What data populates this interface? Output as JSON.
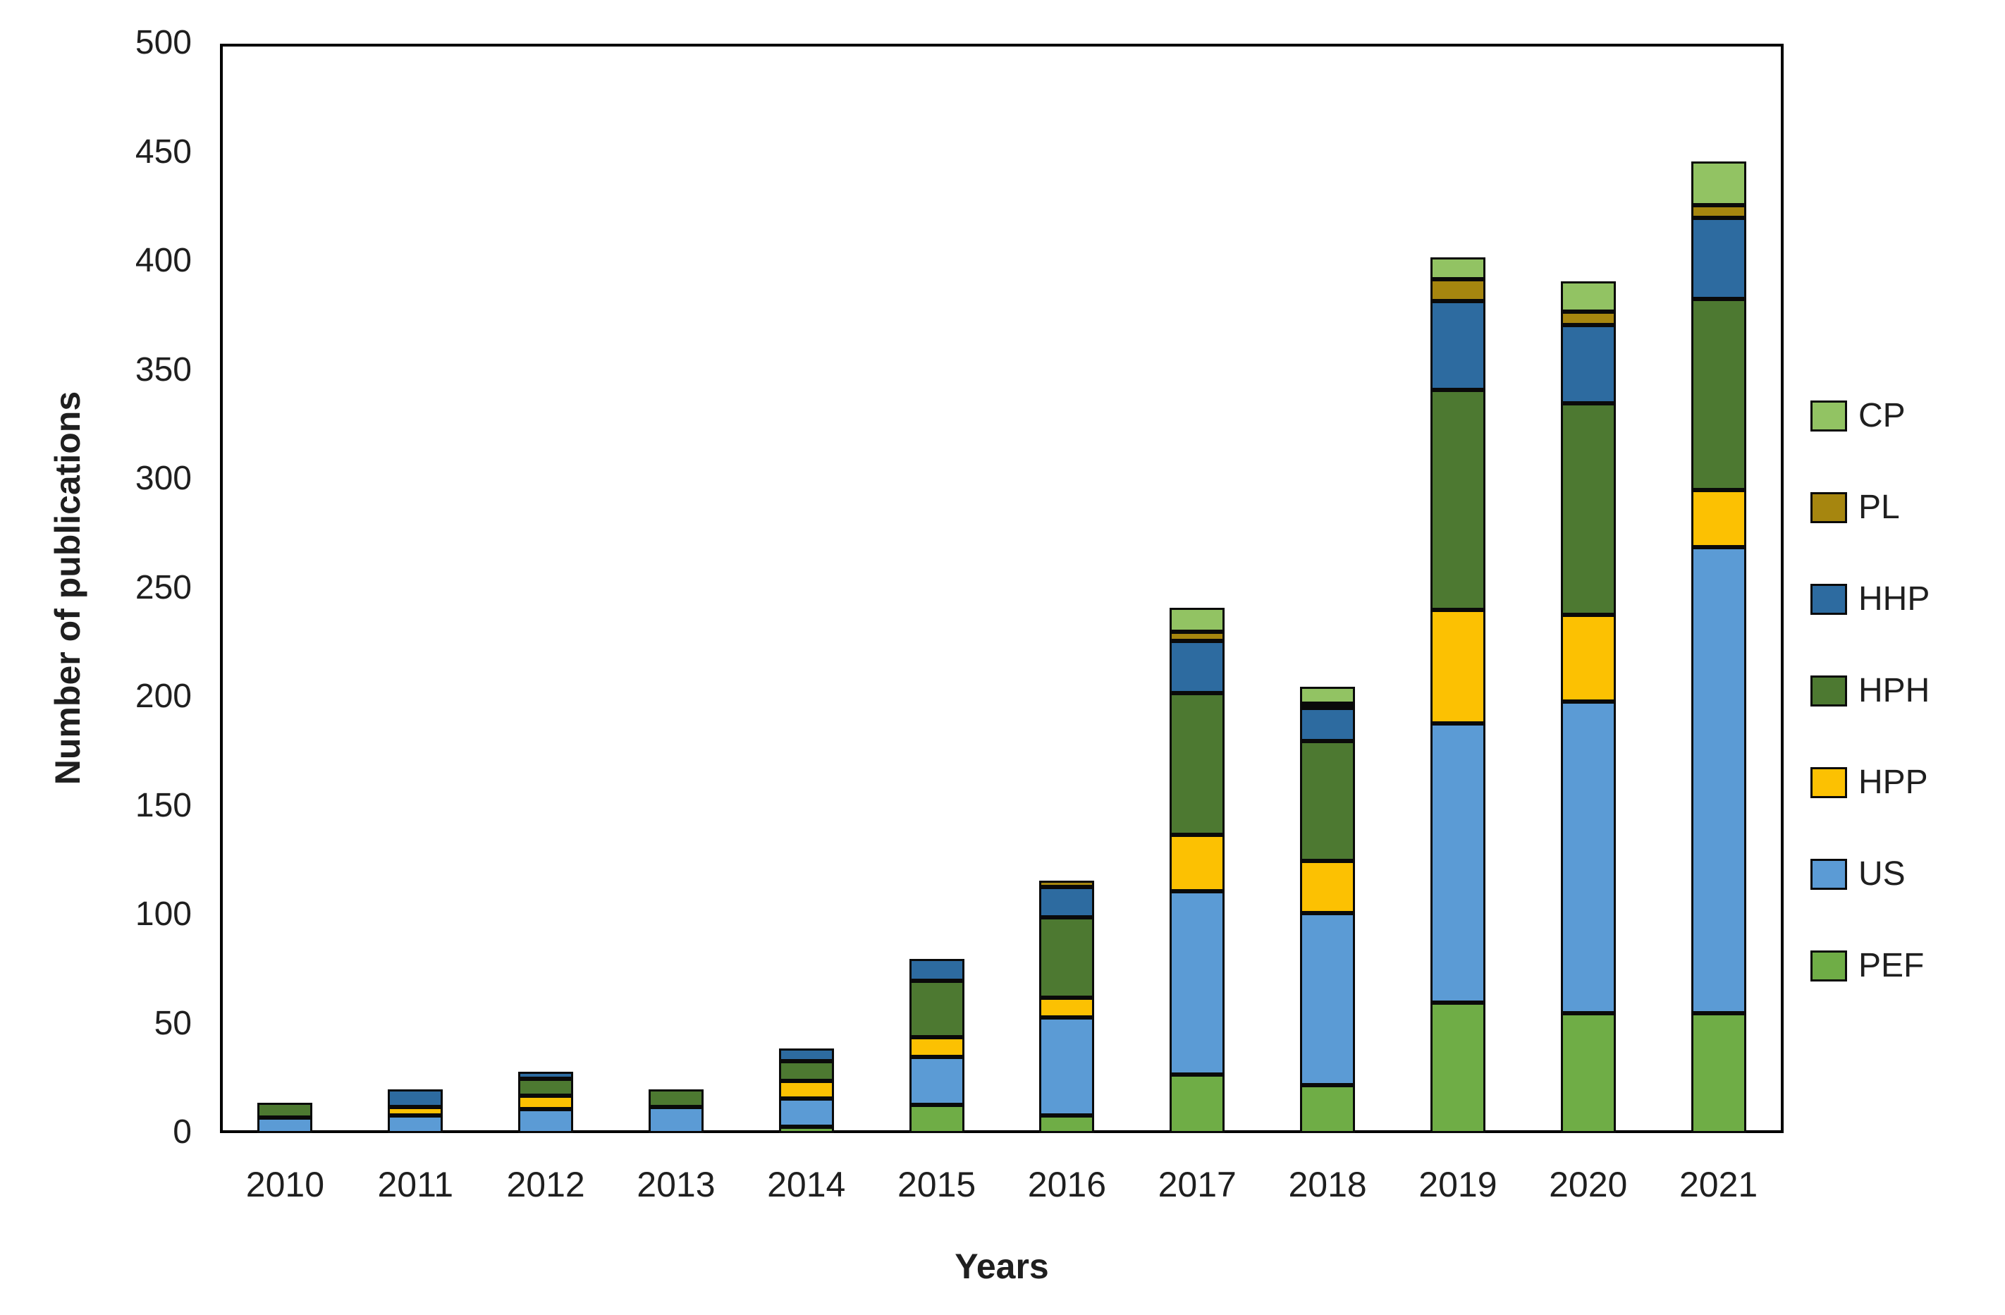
{
  "figure": {
    "y_axis_title": "Number of publications",
    "x_axis_title": "Years"
  },
  "chart_data": {
    "type": "bar",
    "stacked": true,
    "title": "",
    "xlabel": "Years",
    "ylabel": "Number of publications",
    "ylim": [
      0,
      500
    ],
    "y_tick_step": 50,
    "y_ticks": [
      0,
      50,
      100,
      150,
      200,
      250,
      300,
      350,
      400,
      450,
      500
    ],
    "grid": false,
    "legend_position": "right",
    "legend_order_top_to_bottom": [
      "CP",
      "PL",
      "HHP",
      "HPH",
      "HPP",
      "US",
      "PEF"
    ],
    "categories": [
      "2010",
      "2011",
      "2012",
      "2013",
      "2014",
      "2015",
      "2016",
      "2017",
      "2018",
      "2019",
      "2020",
      "2021"
    ],
    "series_bottom_to_top": [
      {
        "name": "PEF",
        "color": "#6fad46",
        "values": [
          0,
          0,
          0,
          0,
          3,
          13,
          8,
          27,
          22,
          60,
          55,
          55
        ]
      },
      {
        "name": "US",
        "color": "#5b9bd5",
        "values": [
          7,
          8,
          11,
          12,
          13,
          22,
          45,
          84,
          79,
          128,
          143,
          214
        ]
      },
      {
        "name": "HPP",
        "color": "#fcc102",
        "values": [
          0,
          4,
          6,
          0,
          8,
          9,
          9,
          26,
          24,
          52,
          40,
          26
        ]
      },
      {
        "name": "HPH",
        "color": "#4d7931",
        "values": [
          7,
          0,
          8,
          8,
          9,
          26,
          37,
          65,
          55,
          101,
          97,
          88
        ]
      },
      {
        "name": "HHP",
        "color": "#2d6ba0",
        "values": [
          0,
          8,
          3,
          0,
          6,
          10,
          14,
          24,
          15,
          41,
          36,
          37
        ]
      },
      {
        "name": "PL",
        "color": "#a6860f",
        "values": [
          0,
          0,
          0,
          0,
          0,
          0,
          3,
          4,
          2,
          10,
          6,
          6
        ]
      },
      {
        "name": "CP",
        "color": "#92c363",
        "values": [
          0,
          0,
          0,
          0,
          0,
          0,
          0,
          11,
          8,
          10,
          14,
          20
        ]
      }
    ],
    "totals": [
      14,
      20,
      28,
      20,
      39,
      80,
      116,
      241,
      205,
      402,
      391,
      446
    ]
  }
}
